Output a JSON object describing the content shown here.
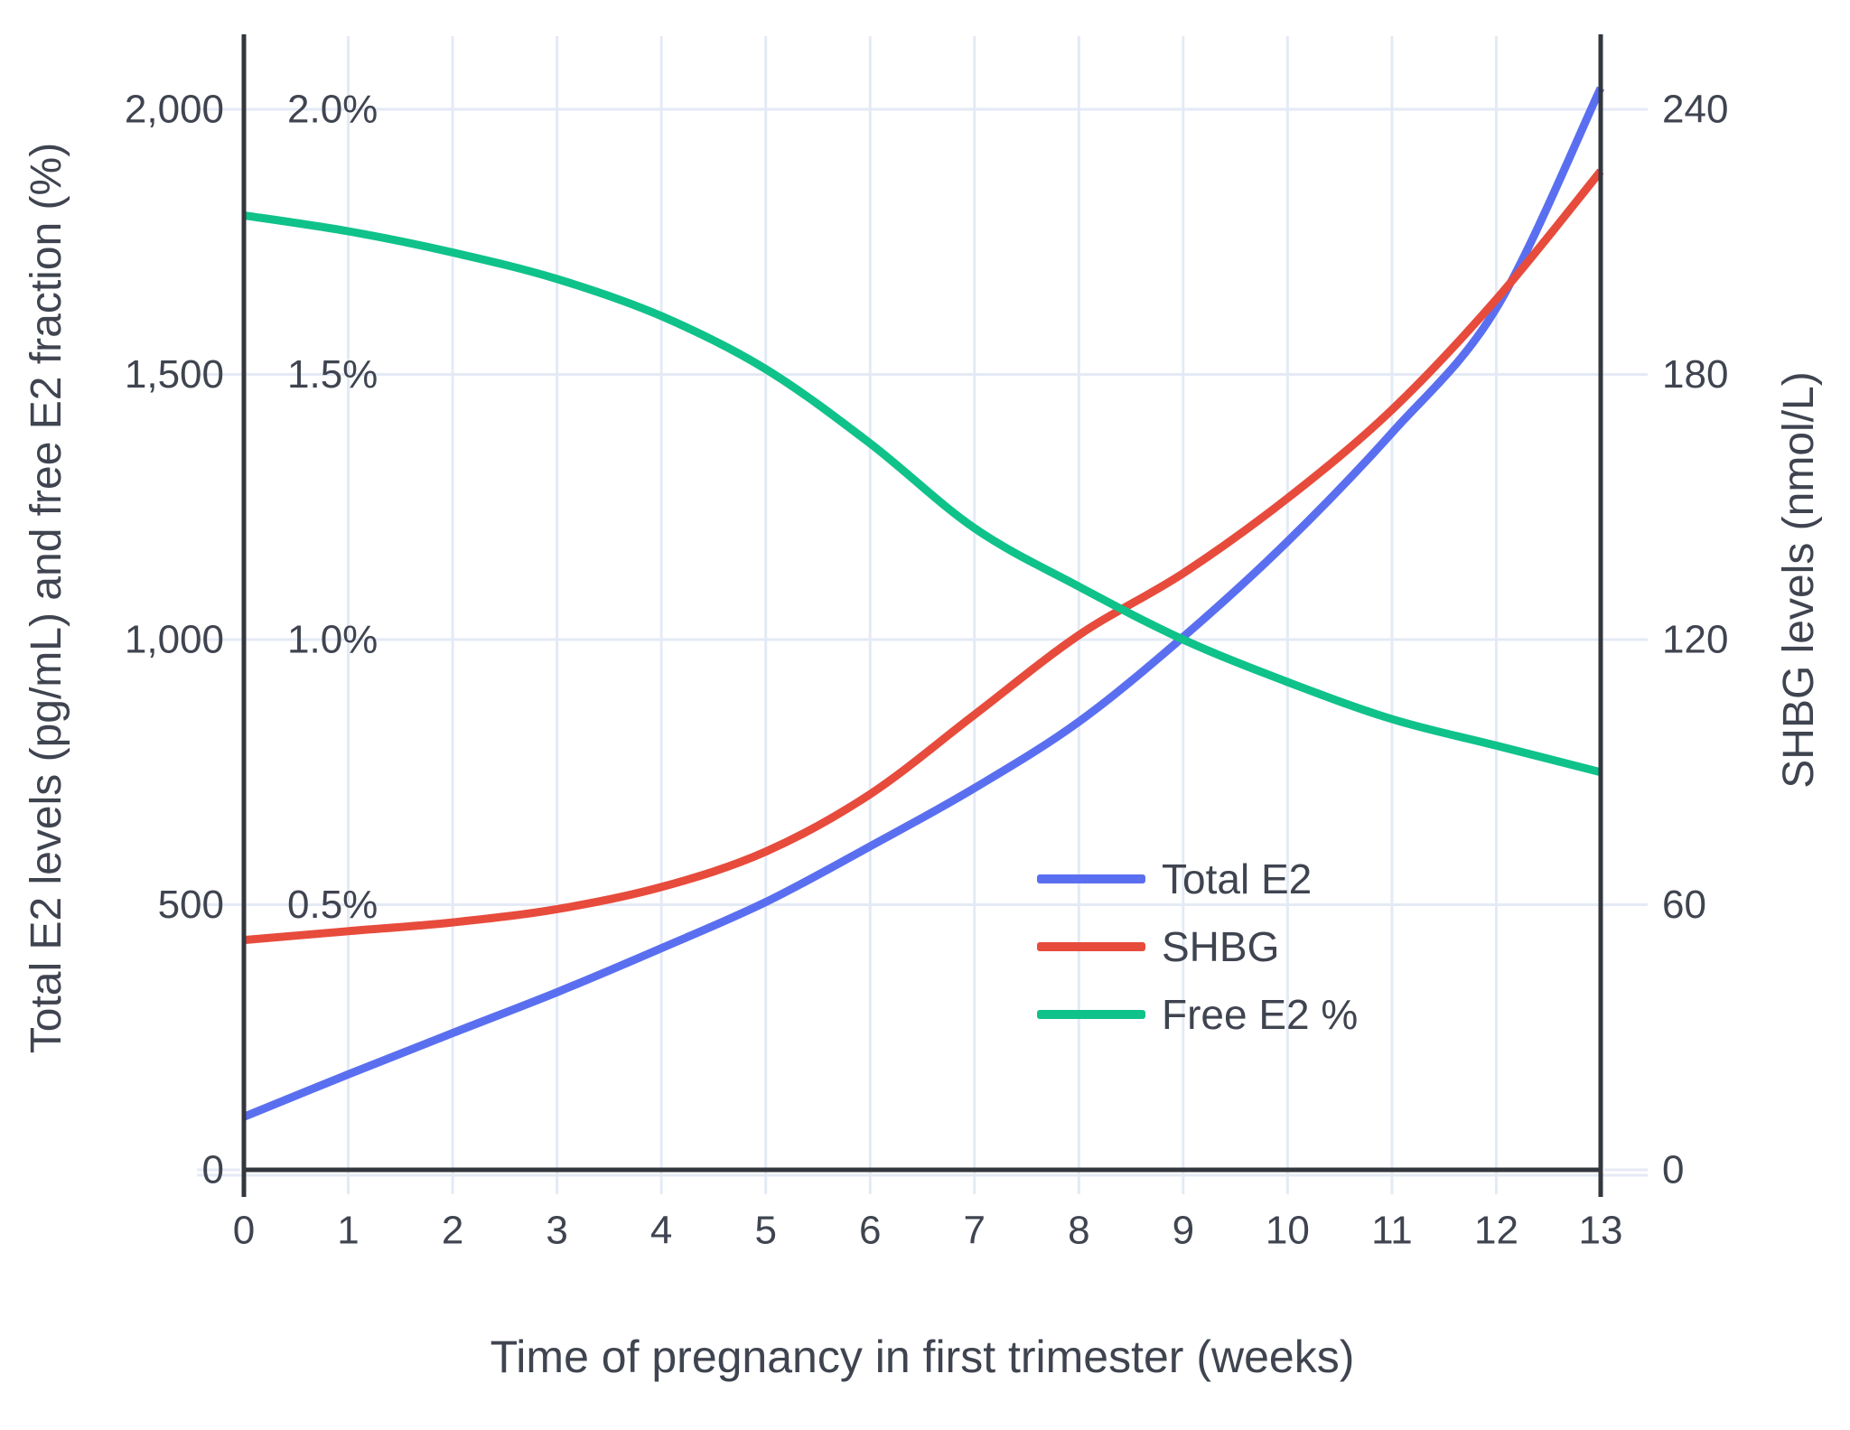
{
  "chart_data": {
    "type": "line",
    "title": "",
    "xlabel": "Time of pregnancy in first trimester (weeks)",
    "ylabel_left": "Total E2 levels (pg/mL) and free E2 fraction (%)",
    "ylabel_right": "SHBG levels (nmol/L)",
    "x": [
      0,
      1,
      2,
      3,
      4,
      5,
      6,
      7,
      8,
      9,
      10,
      11,
      12,
      13
    ],
    "x_tick_labels": [
      "0",
      "1",
      "2",
      "3",
      "4",
      "5",
      "6",
      "7",
      "8",
      "9",
      "10",
      "11",
      "12",
      "13"
    ],
    "left_axis": {
      "tick_labels": [
        "0",
        "500",
        "1,000",
        "1,500",
        "2,000"
      ],
      "tick_values": [
        0,
        500,
        1000,
        1500,
        2000
      ],
      "range": [
        0,
        2138
      ]
    },
    "inner_percent_labels": [
      {
        "text": "0.5%",
        "value_pct": 0.5
      },
      {
        "text": "1.0%",
        "value_pct": 1.0
      },
      {
        "text": "1.5%",
        "value_pct": 1.5
      },
      {
        "text": "2.0%",
        "value_pct": 2.0
      }
    ],
    "right_axis": {
      "tick_labels": [
        "0",
        "60",
        "120",
        "180",
        "240"
      ],
      "tick_values": [
        0,
        60,
        120,
        180,
        240
      ],
      "range": [
        0,
        256.6
      ]
    },
    "series": [
      {
        "name": "Total E2",
        "slug": "total-e2",
        "color": "#5a6ff0",
        "axis": "left",
        "unit": "pg/mL",
        "values": [
          100,
          180,
          258,
          335,
          418,
          505,
          610,
          720,
          845,
          1005,
          1185,
          1390,
          1625,
          2040
        ]
      },
      {
        "name": "SHBG",
        "slug": "shbg",
        "color": "#e74b3c",
        "axis": "right",
        "unit": "nmol/L",
        "values": [
          52,
          54,
          56,
          59,
          64,
          72,
          85,
          103,
          121,
          135,
          152,
          172,
          197,
          226
        ]
      },
      {
        "name": "Free E2 %",
        "slug": "free-e2-pct",
        "color": "#0fc289",
        "axis": "left-percent",
        "unit": "%",
        "values": [
          1.8,
          1.77,
          1.73,
          1.68,
          1.61,
          1.51,
          1.37,
          1.21,
          1.1,
          1.0,
          0.92,
          0.85,
          0.8,
          0.75
        ]
      }
    ],
    "legend": {
      "position": "inside-right-middle",
      "entries": [
        "Total E2",
        "SHBG",
        "Free E2 %"
      ]
    },
    "grid": true,
    "colors": {
      "grid": "#e4eaf5",
      "axis": "#33373e",
      "text": "#3f4450"
    }
  }
}
